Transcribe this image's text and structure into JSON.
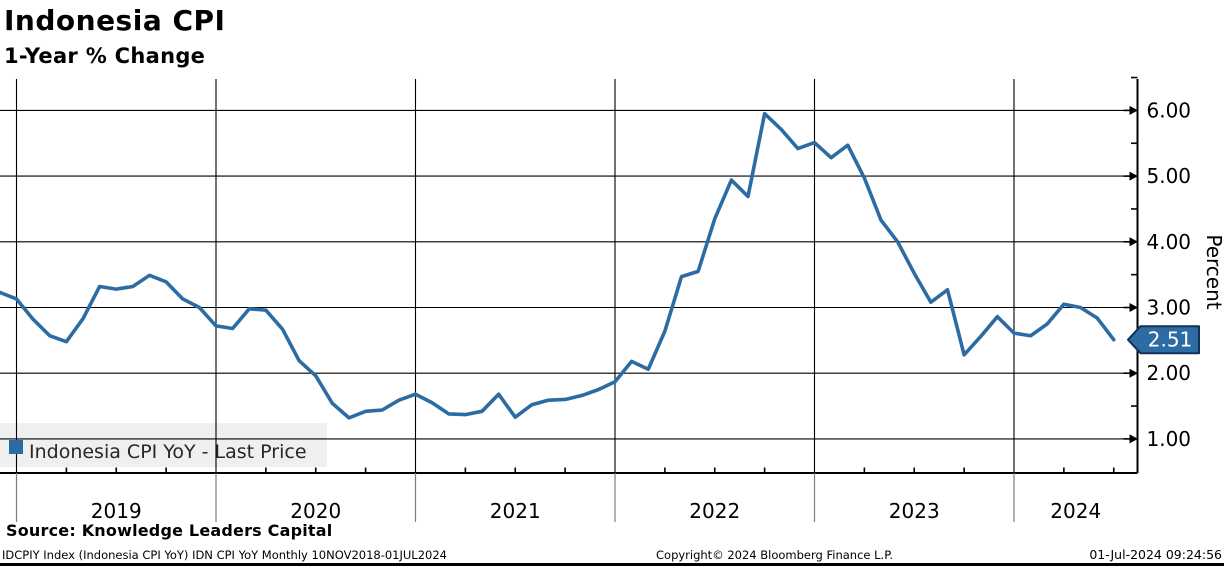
{
  "header": {
    "title": "Indonesia CPI",
    "subtitle": "1-Year % Change"
  },
  "legend": {
    "label": "Indonesia CPI YoY - Last Price"
  },
  "last_price": {
    "value": "2.51"
  },
  "y_axis": {
    "title": "Percent",
    "major_tick_labels": [
      "6.00",
      "5.00",
      "4.00",
      "3.00",
      "2.00",
      "1.00"
    ],
    "major_tick_values": [
      6,
      5,
      4,
      3,
      2,
      1
    ],
    "minor_tick_values": [
      6.5,
      5.5,
      4.5,
      3.5,
      2.5,
      1.5
    ]
  },
  "x_axis": {
    "year_labels": [
      "2019",
      "2020",
      "2021",
      "2022",
      "2023",
      "2024"
    ]
  },
  "footer": {
    "source": "Source: Knowledge Leaders Capital",
    "ticker_line": "IDCPIY Index (Indonesia CPI YoY) IDN CPI YoY  Monthly 10NOV2018-01JUL2024",
    "copyright": "Copyright© 2024 Bloomberg Finance L.P.",
    "timestamp": "01-Jul-2024 09:24:56"
  },
  "colors": {
    "line": "#2d6ca3",
    "badge_fill": "#2d6ca3",
    "badge_border": "#10315a",
    "badge_text": "#ffffff",
    "legend_bg": "#efefef",
    "grid": "#000000"
  },
  "chart_data": {
    "type": "line",
    "title": "Indonesia CPI",
    "subtitle": "1-Year % Change",
    "series_name": "Indonesia CPI YoY - Last Price",
    "frequency": "monthly",
    "x_start": "2018-11",
    "x_end": "2024-06",
    "ylabel": "Percent",
    "ylim": [
      0.5,
      6.5
    ],
    "y_major_step": 1.0,
    "grid": true,
    "legend_position": "bottom-left",
    "last_price": 2.51,
    "months": [
      "2018-11",
      "2018-12",
      "2019-01",
      "2019-02",
      "2019-03",
      "2019-04",
      "2019-05",
      "2019-06",
      "2019-07",
      "2019-08",
      "2019-09",
      "2019-10",
      "2019-11",
      "2019-12",
      "2020-01",
      "2020-02",
      "2020-03",
      "2020-04",
      "2020-05",
      "2020-06",
      "2020-07",
      "2020-08",
      "2020-09",
      "2020-10",
      "2020-11",
      "2020-12",
      "2021-01",
      "2021-02",
      "2021-03",
      "2021-04",
      "2021-05",
      "2021-06",
      "2021-07",
      "2021-08",
      "2021-09",
      "2021-10",
      "2021-11",
      "2021-12",
      "2022-01",
      "2022-02",
      "2022-03",
      "2022-04",
      "2022-05",
      "2022-06",
      "2022-07",
      "2022-08",
      "2022-09",
      "2022-10",
      "2022-11",
      "2022-12",
      "2023-01",
      "2023-02",
      "2023-03",
      "2023-04",
      "2023-05",
      "2023-06",
      "2023-07",
      "2023-08",
      "2023-09",
      "2023-10",
      "2023-11",
      "2023-12",
      "2024-01",
      "2024-02",
      "2024-03",
      "2024-04",
      "2024-05",
      "2024-06"
    ],
    "values": [
      3.23,
      3.13,
      2.82,
      2.57,
      2.48,
      2.83,
      3.32,
      3.28,
      3.32,
      3.49,
      3.39,
      3.13,
      3.0,
      2.72,
      2.68,
      2.98,
      2.96,
      2.67,
      2.19,
      1.96,
      1.54,
      1.32,
      1.42,
      1.44,
      1.59,
      1.68,
      1.55,
      1.38,
      1.37,
      1.42,
      1.68,
      1.33,
      1.52,
      1.59,
      1.6,
      1.66,
      1.75,
      1.87,
      2.18,
      2.06,
      2.64,
      3.47,
      3.55,
      4.35,
      4.94,
      4.69,
      5.95,
      5.71,
      5.42,
      5.51,
      5.28,
      5.47,
      4.97,
      4.33,
      4.0,
      3.52,
      3.08,
      3.27,
      2.28,
      2.56,
      2.86,
      2.61,
      2.57,
      2.75,
      3.05,
      3.0,
      2.84,
      2.51
    ]
  }
}
